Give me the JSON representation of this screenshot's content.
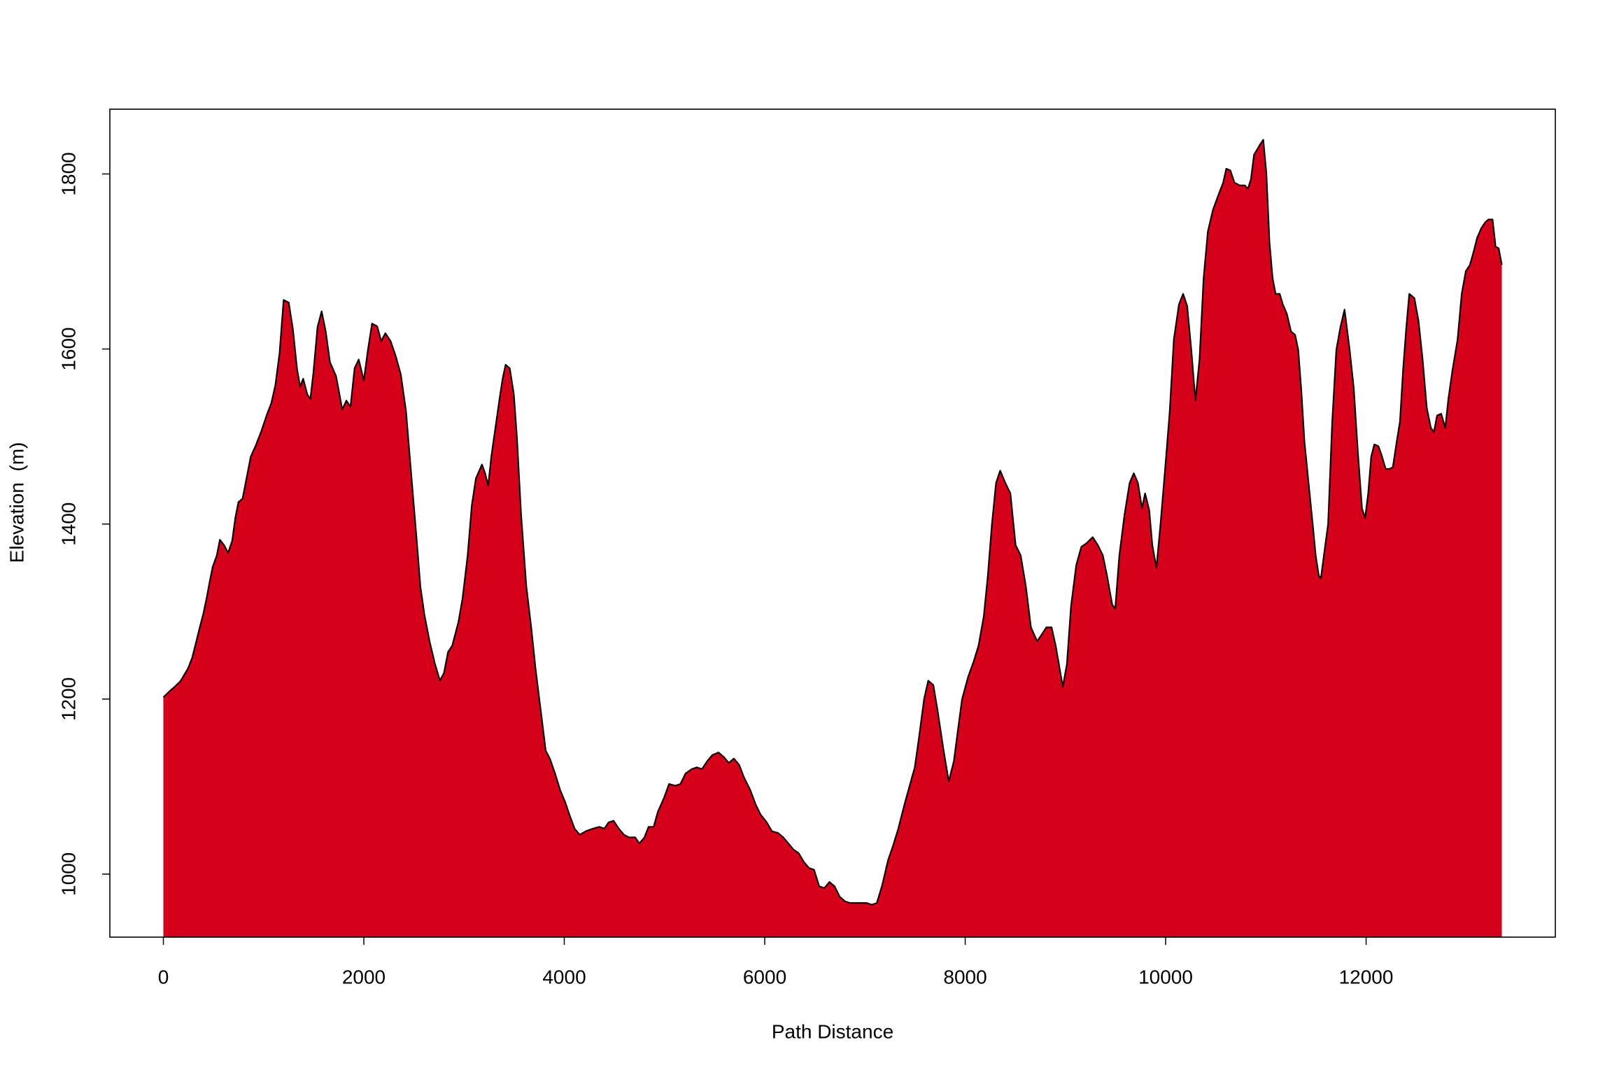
{
  "chart_data": {
    "type": "area",
    "x_label": "Path Distance",
    "y_label": "Elevation  (m)",
    "color": "#d7001b",
    "line_color": "#000000",
    "xlim": [
      -534,
      13888
    ],
    "ylim": [
      928,
      1874
    ],
    "xticks": [
      0,
      2000,
      4000,
      6000,
      8000,
      10000,
      12000
    ],
    "yticks": [
      1000,
      1200,
      1400,
      1600,
      1800
    ],
    "x": [
      0,
      62,
      113,
      174,
      246,
      287,
      318,
      359,
      400,
      431,
      462,
      492,
      533,
      564,
      605,
      646,
      687,
      718,
      749,
      790,
      821,
      872,
      923,
      974,
      1036,
      1077,
      1118,
      1159,
      1200,
      1251,
      1292,
      1333,
      1364,
      1395,
      1436,
      1467,
      1497,
      1538,
      1579,
      1620,
      1662,
      1723,
      1785,
      1826,
      1867,
      1908,
      1949,
      2000,
      2041,
      2082,
      2133,
      2174,
      2215,
      2267,
      2318,
      2369,
      2421,
      2472,
      2523,
      2564,
      2605,
      2656,
      2708,
      2759,
      2800,
      2841,
      2882,
      2944,
      2985,
      3036,
      3077,
      3118,
      3179,
      3210,
      3241,
      3272,
      3313,
      3354,
      3385,
      3415,
      3456,
      3497,
      3528,
      3569,
      3621,
      3672,
      3713,
      3764,
      3815,
      3856,
      3908,
      3959,
      4010,
      4051,
      4103,
      4154,
      4215,
      4287,
      4349,
      4400,
      4441,
      4492,
      4544,
      4595,
      4646,
      4708,
      4749,
      4800,
      4841,
      4892,
      4933,
      4995,
      5046,
      5108,
      5159,
      5210,
      5272,
      5323,
      5374,
      5426,
      5477,
      5538,
      5590,
      5641,
      5692,
      5744,
      5795,
      5856,
      5908,
      5959,
      6021,
      6072,
      6133,
      6185,
      6236,
      6287,
      6338,
      6390,
      6441,
      6492,
      6544,
      6595,
      6646,
      6697,
      6749,
      6800,
      6851,
      6913,
      6964,
      7015,
      7067,
      7118,
      7169,
      7231,
      7282,
      7333,
      7395,
      7446,
      7497,
      7538,
      7590,
      7631,
      7682,
      7723,
      7785,
      7836,
      7887,
      7928,
      7969,
      8031,
      8082,
      8133,
      8185,
      8226,
      8267,
      8308,
      8349,
      8400,
      8451,
      8503,
      8554,
      8605,
      8656,
      8718,
      8759,
      8810,
      8862,
      8903,
      8933,
      8974,
      9015,
      9056,
      9108,
      9159,
      9210,
      9272,
      9323,
      9374,
      9415,
      9467,
      9497,
      9538,
      9590,
      9641,
      9682,
      9723,
      9764,
      9795,
      9836,
      9867,
      9908,
      9949,
      10000,
      10041,
      10082,
      10133,
      10174,
      10215,
      10256,
      10297,
      10338,
      10379,
      10421,
      10472,
      10533,
      10574,
      10605,
      10646,
      10687,
      10738,
      10790,
      10821,
      10851,
      10882,
      10944,
      10974,
      11005,
      11036,
      11067,
      11097,
      11138,
      11169,
      11210,
      11251,
      11292,
      11323,
      11354,
      11385,
      11426,
      11467,
      11497,
      11528,
      11549,
      11579,
      11621,
      11662,
      11703,
      11744,
      11785,
      11836,
      11877,
      11918,
      11959,
      11990,
      12021,
      12051,
      12082,
      12123,
      12154,
      12195,
      12236,
      12267,
      12308,
      12338,
      12369,
      12400,
      12431,
      12482,
      12523,
      12564,
      12605,
      12646,
      12677,
      12708,
      12749,
      12790,
      12821,
      12862,
      12913,
      12954,
      12995,
      13036,
      13077,
      13108,
      13149,
      13190,
      13221,
      13262,
      13292,
      13323,
      13354
    ],
    "values": [
      1202,
      1209,
      1214,
      1221,
      1235,
      1247,
      1261,
      1280,
      1298,
      1315,
      1334,
      1351,
      1364,
      1382,
      1376,
      1367,
      1381,
      1407,
      1425,
      1429,
      1447,
      1477,
      1490,
      1505,
      1526,
      1538,
      1559,
      1595,
      1656,
      1653,
      1623,
      1578,
      1557,
      1566,
      1548,
      1543,
      1573,
      1625,
      1643,
      1620,
      1585,
      1569,
      1531,
      1541,
      1534,
      1578,
      1588,
      1564,
      1599,
      1629,
      1626,
      1609,
      1618,
      1609,
      1592,
      1571,
      1529,
      1458,
      1388,
      1329,
      1296,
      1266,
      1241,
      1221,
      1230,
      1254,
      1261,
      1288,
      1315,
      1364,
      1421,
      1452,
      1468,
      1458,
      1444,
      1477,
      1510,
      1543,
      1566,
      1582,
      1578,
      1548,
      1498,
      1411,
      1329,
      1280,
      1235,
      1188,
      1141,
      1132,
      1115,
      1096,
      1082,
      1068,
      1052,
      1045,
      1049,
      1052,
      1054,
      1052,
      1059,
      1061,
      1052,
      1045,
      1042,
      1042,
      1035,
      1042,
      1054,
      1054,
      1071,
      1087,
      1103,
      1101,
      1103,
      1115,
      1120,
      1122,
      1120,
      1129,
      1136,
      1139,
      1134,
      1127,
      1132,
      1125,
      1110,
      1096,
      1080,
      1068,
      1059,
      1049,
      1047,
      1042,
      1035,
      1028,
      1024,
      1014,
      1007,
      1005,
      986,
      984,
      991,
      986,
      974,
      969,
      967,
      967,
      967,
      967,
      965,
      967,
      986,
      1016,
      1033,
      1052,
      1080,
      1101,
      1122,
      1155,
      1200,
      1221,
      1216,
      1188,
      1141,
      1106,
      1129,
      1165,
      1200,
      1226,
      1242,
      1261,
      1294,
      1341,
      1400,
      1447,
      1461,
      1447,
      1435,
      1376,
      1364,
      1329,
      1282,
      1266,
      1273,
      1282,
      1282,
      1261,
      1241,
      1214,
      1240,
      1306,
      1353,
      1374,
      1378,
      1385,
      1376,
      1364,
      1341,
      1308,
      1303,
      1364,
      1411,
      1447,
      1458,
      1447,
      1418,
      1435,
      1416,
      1376,
      1350,
      1400,
      1470,
      1529,
      1611,
      1651,
      1663,
      1649,
      1599,
      1541,
      1588,
      1681,
      1734,
      1759,
      1778,
      1790,
      1806,
      1804,
      1790,
      1787,
      1787,
      1783,
      1794,
      1822,
      1834,
      1839,
      1801,
      1722,
      1681,
      1663,
      1663,
      1651,
      1640,
      1620,
      1616,
      1599,
      1552,
      1494,
      1447,
      1400,
      1364,
      1341,
      1338,
      1364,
      1400,
      1517,
      1599,
      1625,
      1645,
      1599,
      1555,
      1482,
      1418,
      1407,
      1435,
      1477,
      1491,
      1489,
      1479,
      1463,
      1463,
      1465,
      1496,
      1517,
      1576,
      1623,
      1663,
      1658,
      1632,
      1588,
      1533,
      1510,
      1505,
      1524,
      1526,
      1510,
      1543,
      1576,
      1611,
      1663,
      1689,
      1696,
      1713,
      1727,
      1738,
      1745,
      1748,
      1748,
      1717,
      1715,
      1696
    ]
  }
}
